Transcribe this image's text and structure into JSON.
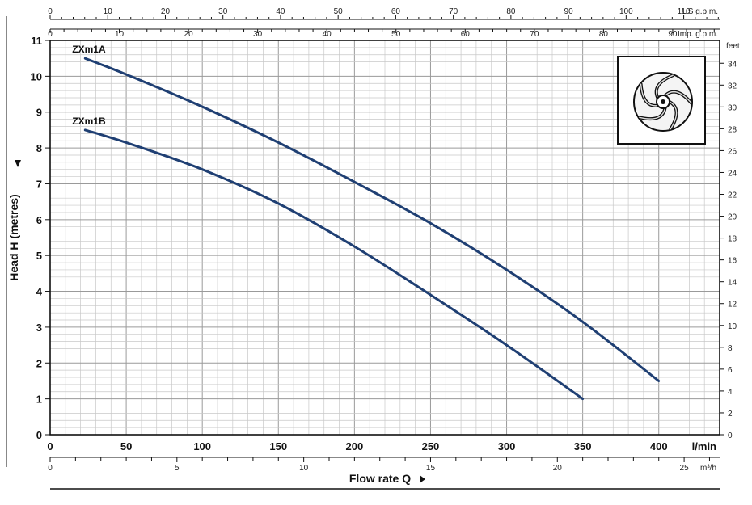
{
  "chart_data": {
    "type": "line",
    "title": "",
    "xlabel": "Flow rate Q",
    "ylabel": "Head H (metres)",
    "x_unit": "l/min",
    "xlim": [
      0,
      440
    ],
    "ylim": [
      0,
      11
    ],
    "x_ticks": [
      0,
      50,
      100,
      150,
      200,
      250,
      300,
      350,
      400
    ],
    "y_ticks": [
      0,
      1,
      2,
      3,
      4,
      5,
      6,
      7,
      8,
      9,
      10,
      11
    ],
    "grid": true,
    "secondary_axes": {
      "right_feet": {
        "unit": "feet",
        "ticks": [
          0,
          2,
          4,
          6,
          8,
          10,
          12,
          14,
          16,
          18,
          20,
          22,
          24,
          26,
          28,
          30,
          32,
          34
        ]
      },
      "bottom_m3h": {
        "unit": "m³/h",
        "ticks": [
          0,
          5,
          10,
          15,
          20,
          25
        ]
      },
      "top_us_gpm": {
        "unit": "US g.p.m.",
        "ticks": [
          0,
          10,
          20,
          30,
          40,
          50,
          60,
          70,
          80,
          90,
          100,
          110
        ]
      },
      "top_imp_gpm": {
        "unit": "Imp. g.p.m.",
        "ticks": [
          0,
          10,
          20,
          30,
          40,
          50,
          60,
          70,
          80,
          90
        ]
      }
    },
    "series": [
      {
        "name": "ZXm1A",
        "color": "#1f3f73",
        "x": [
          23,
          50,
          100,
          150,
          200,
          250,
          300,
          350,
          400
        ],
        "y": [
          10.5,
          10.05,
          9.15,
          8.15,
          7.05,
          5.9,
          4.6,
          3.15,
          1.5
        ]
      },
      {
        "name": "ZXm1B",
        "color": "#1f3f73",
        "x": [
          23,
          50,
          100,
          150,
          200,
          250,
          300,
          350
        ],
        "y": [
          8.5,
          8.15,
          7.4,
          6.45,
          5.25,
          3.9,
          2.5,
          1.0
        ]
      }
    ],
    "inset_icon": "impeller-icon"
  }
}
